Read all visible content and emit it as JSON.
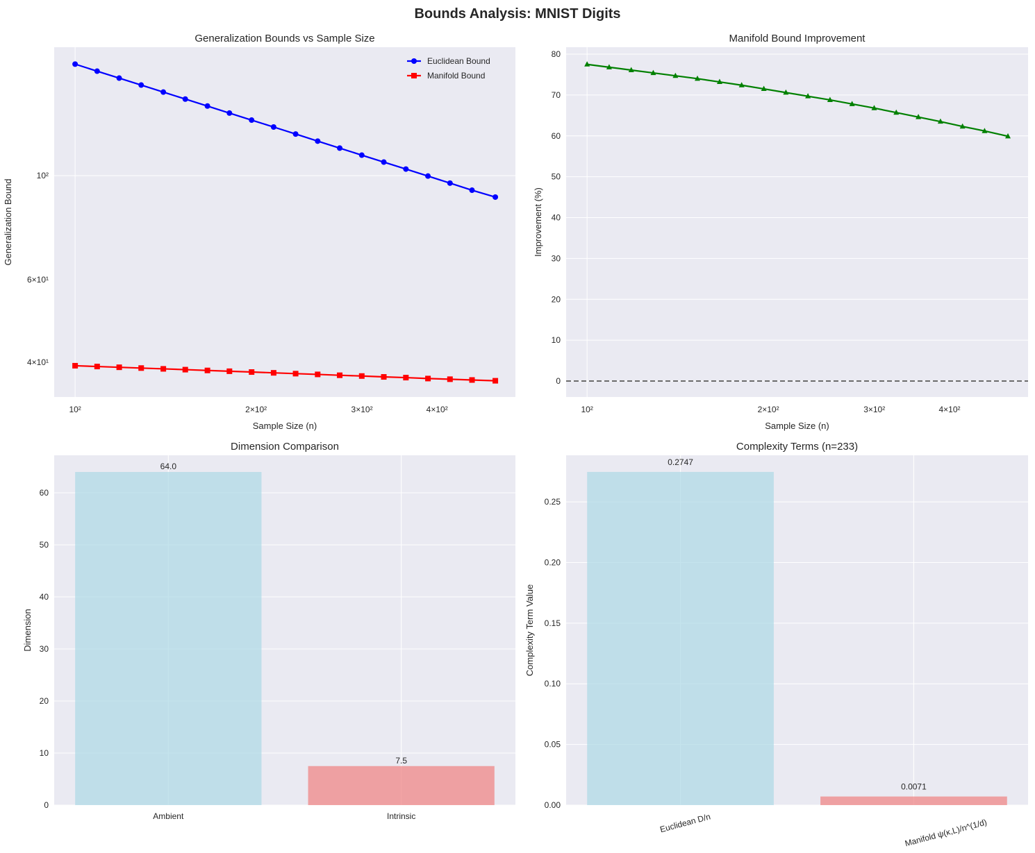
{
  "suptitle": "Bounds Analysis: MNIST Digits",
  "chart_data": [
    {
      "type": "line",
      "title": "Generalization Bounds vs Sample Size",
      "xlabel": "Sample Size (n)",
      "ylabel": "Generalization Bound",
      "xscale": "log",
      "yscale": "log",
      "xlim": [
        92.3,
        540
      ],
      "ylim": [
        33.7,
        188
      ],
      "xticks": [
        {
          "value": 100,
          "label": "10²"
        },
        {
          "value": 200,
          "label": "2×10²"
        },
        {
          "value": 300,
          "label": "3×10²"
        },
        {
          "value": 400,
          "label": "4×10²"
        }
      ],
      "yticks": [
        {
          "value": 100,
          "label": "10²"
        },
        {
          "value": 60,
          "label": "6×10¹"
        },
        {
          "value": 40,
          "label": "4×10¹"
        }
      ],
      "grid": true,
      "legend": "top-right",
      "x": [
        100,
        108.8,
        118.4,
        128.8,
        140.2,
        152.5,
        166.0,
        180.6,
        196.6,
        213.9,
        232.7,
        253.2,
        275.5,
        299.8,
        326.2,
        355.0,
        386.3,
        420.3,
        457.3,
        500
      ],
      "series": [
        {
          "name": "Euclidean Bound",
          "color": "#0000ff",
          "marker": "circle",
          "values": [
            173.0,
            167.1,
            161.5,
            156.1,
            150.8,
            145.7,
            140.8,
            136.0,
            131.4,
            127.0,
            122.7,
            118.5,
            114.5,
            110.6,
            106.9,
            103.3,
            99.8,
            96.4,
            93.1,
            90.0
          ]
        },
        {
          "name": "Manifold Bound",
          "color": "#ff0000",
          "marker": "square",
          "values": [
            39.3,
            39.15,
            39.0,
            38.85,
            38.7,
            38.55,
            38.4,
            38.25,
            38.1,
            37.95,
            37.8,
            37.66,
            37.5,
            37.36,
            37.2,
            37.07,
            36.9,
            36.78,
            36.64,
            36.5
          ]
        }
      ]
    },
    {
      "type": "line",
      "title": "Manifold Bound Improvement",
      "xlabel": "Sample Size (n)",
      "ylabel": "Improvement (%)",
      "xscale": "log",
      "xlim": [
        92.3,
        540
      ],
      "ylim": [
        -3.9,
        81.7
      ],
      "xticks": [
        {
          "value": 100,
          "label": "10²"
        },
        {
          "value": 200,
          "label": "2×10²"
        },
        {
          "value": 300,
          "label": "3×10²"
        },
        {
          "value": 400,
          "label": "4×10²"
        }
      ],
      "yticks": [
        {
          "value": 0,
          "label": "0"
        },
        {
          "value": 10,
          "label": "10"
        },
        {
          "value": 20,
          "label": "20"
        },
        {
          "value": 30,
          "label": "30"
        },
        {
          "value": 40,
          "label": "40"
        },
        {
          "value": 50,
          "label": "50"
        },
        {
          "value": 60,
          "label": "60"
        },
        {
          "value": 70,
          "label": "70"
        },
        {
          "value": 80,
          "label": "80"
        }
      ],
      "grid": true,
      "reference_line": {
        "y": 0,
        "style": "dashed",
        "color": "#6b6b6b"
      },
      "x": [
        100,
        108.8,
        118.4,
        128.8,
        140.2,
        152.5,
        166.0,
        180.6,
        196.6,
        213.9,
        232.7,
        253.2,
        275.5,
        299.8,
        326.2,
        355.0,
        386.3,
        420.3,
        457.3,
        500
      ],
      "series": [
        {
          "color": "#008000",
          "marker": "triangle",
          "values": [
            77.5,
            76.8,
            76.1,
            75.4,
            74.7,
            74.0,
            73.2,
            72.4,
            71.5,
            70.6,
            69.7,
            68.8,
            67.8,
            66.8,
            65.7,
            64.6,
            63.5,
            62.3,
            61.2,
            59.9
          ]
        }
      ]
    },
    {
      "type": "bar",
      "title": "Dimension Comparison",
      "xlabel": "",
      "ylabel": "Dimension",
      "ylim": [
        0,
        67.2
      ],
      "yticks": [
        {
          "value": 0,
          "label": "0"
        },
        {
          "value": 10,
          "label": "10"
        },
        {
          "value": 20,
          "label": "20"
        },
        {
          "value": 30,
          "label": "30"
        },
        {
          "value": 40,
          "label": "40"
        },
        {
          "value": 50,
          "label": "50"
        },
        {
          "value": 60,
          "label": "60"
        }
      ],
      "grid": true,
      "categories": [
        "Ambient",
        "Intrinsic"
      ],
      "values": [
        64.0,
        7.5
      ],
      "data_labels": [
        "64.0",
        "7.5"
      ],
      "colors": [
        "#add8e6",
        "#f08080"
      ],
      "label_rotation": 0
    },
    {
      "type": "bar",
      "title": "Complexity Terms (n=233)",
      "xlabel": "",
      "ylabel": "Complexity Term Value",
      "ylim": [
        0,
        0.2884
      ],
      "yticks": [
        {
          "value": 0,
          "label": "0.00"
        },
        {
          "value": 0.05,
          "label": "0.05"
        },
        {
          "value": 0.1,
          "label": "0.10"
        },
        {
          "value": 0.15,
          "label": "0.15"
        },
        {
          "value": 0.2,
          "label": "0.20"
        },
        {
          "value": 0.25,
          "label": "0.25"
        }
      ],
      "grid": true,
      "categories": [
        "Euclidean D/n",
        "Manifold ψ(κ,L)/n^(1/d)"
      ],
      "values": [
        0.2747,
        0.0071
      ],
      "data_labels": [
        "0.2747",
        "0.0071"
      ],
      "colors": [
        "#add8e6",
        "#f08080"
      ],
      "label_rotation": 15
    }
  ]
}
